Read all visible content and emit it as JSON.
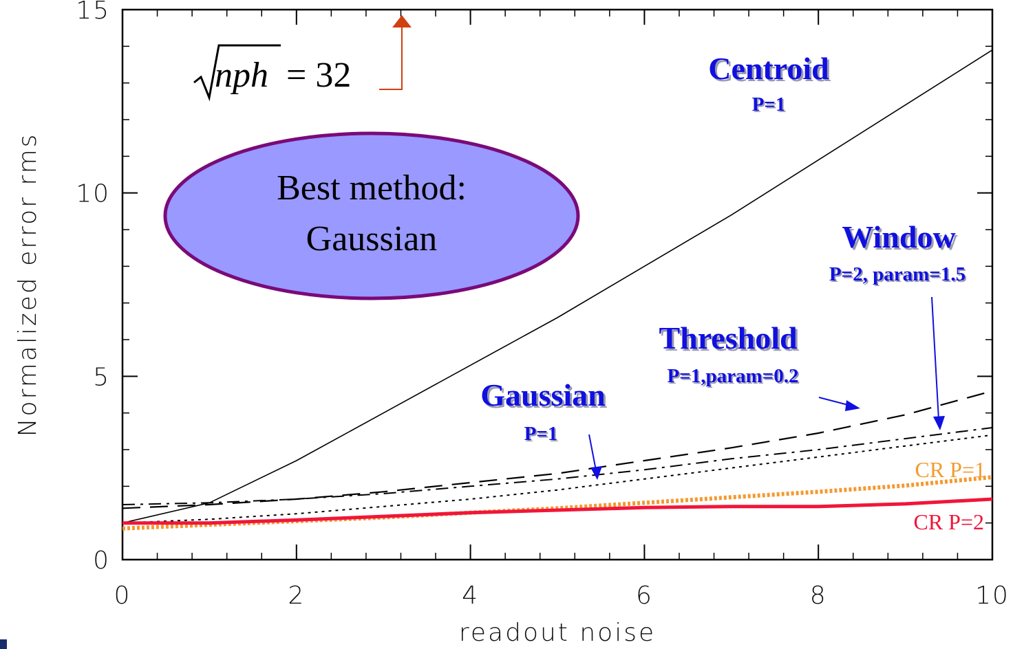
{
  "chart_data": {
    "type": "line",
    "xlabel": "readout noise",
    "ylabel": "Normalized error rms",
    "xlim": [
      0,
      10
    ],
    "ylim": [
      0,
      15
    ],
    "xticks": [
      0,
      2,
      4,
      6,
      8,
      10
    ],
    "yticks": [
      0,
      5,
      10,
      15
    ],
    "xtick_labels": [
      "0",
      "2",
      "4",
      "6",
      "8",
      "10"
    ],
    "ytick_labels": [
      "0",
      "5",
      "10",
      "15"
    ],
    "series": [
      {
        "style": "solid-thin",
        "color": "#000000",
        "x": [
          0,
          1,
          2,
          3,
          4,
          5,
          6,
          7,
          8,
          9,
          10
        ],
        "y": [
          1.0,
          1.55,
          2.7,
          4.0,
          5.3,
          6.6,
          8.0,
          9.4,
          10.9,
          12.4,
          13.9
        ]
      },
      {
        "style": "long-dash",
        "color": "#000000",
        "x": [
          0,
          1,
          2,
          3,
          4,
          5,
          6,
          7,
          8,
          9,
          10
        ],
        "y": [
          1.4,
          1.5,
          1.65,
          1.85,
          2.1,
          2.35,
          2.7,
          3.05,
          3.45,
          3.95,
          4.6
        ]
      },
      {
        "style": "dash-dot",
        "color": "#000000",
        "x": [
          0,
          1,
          2,
          3,
          4,
          5,
          6,
          7,
          8,
          9,
          10
        ],
        "y": [
          1.5,
          1.55,
          1.65,
          1.8,
          2.0,
          2.2,
          2.45,
          2.75,
          3.0,
          3.3,
          3.6
        ]
      },
      {
        "style": "dotted",
        "color": "#000000",
        "x": [
          0,
          1,
          2,
          3,
          4,
          5,
          6,
          7,
          8,
          9,
          10
        ],
        "y": [
          1.0,
          1.1,
          1.25,
          1.45,
          1.65,
          1.9,
          2.2,
          2.5,
          2.8,
          3.1,
          3.4
        ]
      },
      {
        "style": "dotted-thick",
        "color": "#f39a30",
        "x": [
          0,
          1,
          2,
          3,
          4,
          5,
          6,
          7,
          8,
          9,
          10
        ],
        "y": [
          0.85,
          0.95,
          1.05,
          1.15,
          1.28,
          1.4,
          1.55,
          1.7,
          1.85,
          2.02,
          2.25
        ]
      },
      {
        "style": "solid-thick",
        "color": "#f0163a",
        "x": [
          0,
          1,
          2,
          3,
          4,
          5,
          6,
          7,
          8,
          9,
          10
        ],
        "y": [
          1.0,
          1.0,
          1.08,
          1.18,
          1.28,
          1.35,
          1.42,
          1.45,
          1.45,
          1.52,
          1.65
        ]
      }
    ],
    "annotations": {
      "centroid": {
        "title": "Centroid",
        "sub": "P=1"
      },
      "window": {
        "title": "Window",
        "sub": "P=2, param=1.5"
      },
      "threshold": {
        "title": "Threshold",
        "sub": "P=1,param=0.2"
      },
      "gaussian": {
        "title": "Gaussian",
        "sub": "P=1"
      },
      "cr1": {
        "text": "CR P=1",
        "color": "#f39a30"
      },
      "cr2": {
        "text": "CR P=2",
        "color": "#f0163a"
      },
      "ellipse": {
        "line1": "Best method:",
        "line2": "Gaussian",
        "fill": "#9999ff",
        "stroke": "#7a0a7a"
      },
      "formula": {
        "var": "nph",
        "rhs": "= 32"
      }
    },
    "arrow_color": "#d04010",
    "annotation_arrow_color": "#1010e0"
  }
}
